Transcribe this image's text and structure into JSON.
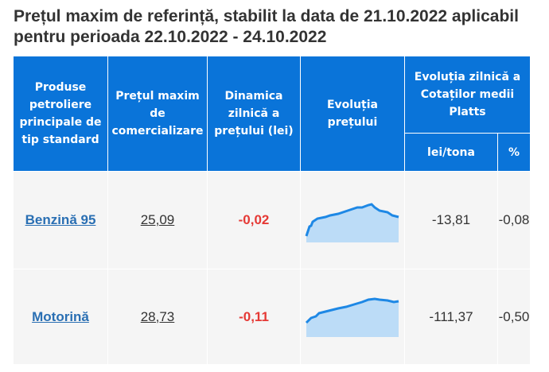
{
  "title": "Prețul maxim de referință, stabilit la data de 21.10.2022 aplicabil pentru perioada 22.10.2022 - 24.10.2022",
  "headers": {
    "product": "Produse petroliere principale de tip standard",
    "max_price": "Prețul maxim de comercializare",
    "dynamics": "Dinamica zilnică a prețului (lei)",
    "evolution": "Evoluția prețului",
    "platts": "Evoluția zilnică a Cotaților medii Platts",
    "lei_tona": "lei/tona",
    "percent": "%"
  },
  "rows": [
    {
      "product": "Benzină 95",
      "price": "25,09",
      "delta": "-0,02",
      "lei_tona": "-13,81",
      "percent": "-0,08"
    },
    {
      "product": "Motorină",
      "price": "28,73",
      "delta": "-0,11",
      "lei_tona": "-111,37",
      "percent": "-0,50"
    }
  ],
  "colors": {
    "header_bg": "#0a74d9",
    "negative": "#e53935",
    "link": "#2a6fb3",
    "spark_line": "#1e88e5"
  }
}
